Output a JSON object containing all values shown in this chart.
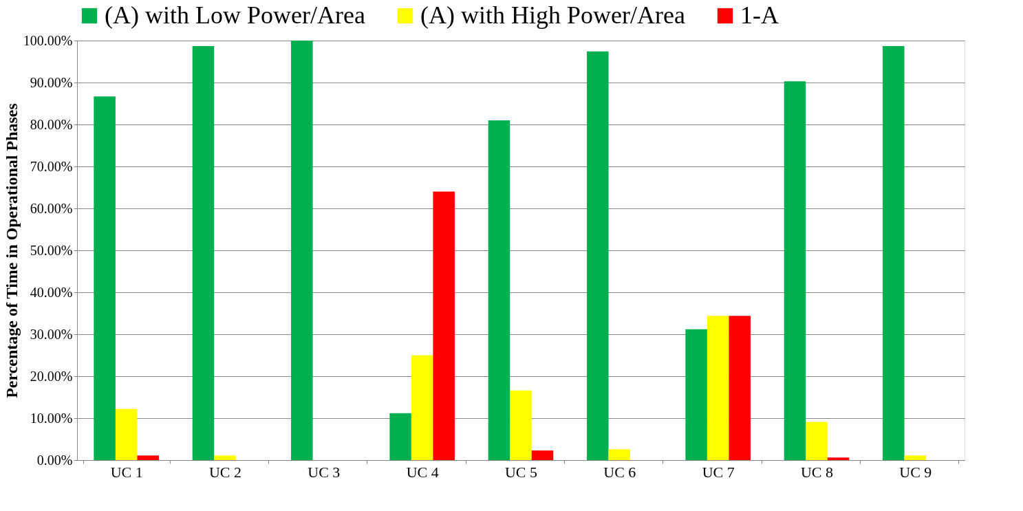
{
  "chart_data": {
    "type": "bar",
    "ylabel": "Percentage of Time in Operational Phases",
    "categories": [
      "UC 1",
      "UC 2",
      "UC 3",
      "UC 4",
      "UC 5",
      "UC 6",
      "UC 7",
      "UC 8",
      "UC 9"
    ],
    "series": [
      {
        "name": "(A) with Low Power/Area",
        "color": "#00b050",
        "values": [
          86.7,
          98.7,
          100,
          11.2,
          81.0,
          97.4,
          31.2,
          90.3,
          98.7
        ]
      },
      {
        "name": "(A) with High Power/Area",
        "color": "#ffff00",
        "values": [
          12.2,
          1.1,
          0,
          25.0,
          16.6,
          2.6,
          34.4,
          9.1,
          1.1
        ]
      },
      {
        "name": "1-A",
        "color": "#ff0000",
        "values": [
          1.1,
          0,
          0,
          64.0,
          2.3,
          0,
          34.4,
          0.6,
          0
        ]
      }
    ],
    "ylim": [
      0,
      100
    ],
    "yticks": [
      {
        "value": 0,
        "label": "0.00%"
      },
      {
        "value": 10,
        "label": "10.00%"
      },
      {
        "value": 20,
        "label": "20.00%"
      },
      {
        "value": 30,
        "label": "30.00%"
      },
      {
        "value": 40,
        "label": "40.00%"
      },
      {
        "value": 50,
        "label": "50.00%"
      },
      {
        "value": 60,
        "label": "60.00%"
      },
      {
        "value": 70,
        "label": "70.00%"
      },
      {
        "value": 80,
        "label": "80.00%"
      },
      {
        "value": 90,
        "label": "90.00%"
      },
      {
        "value": 100,
        "label": "100.00%"
      }
    ],
    "grid": "y",
    "legend": "top left"
  }
}
